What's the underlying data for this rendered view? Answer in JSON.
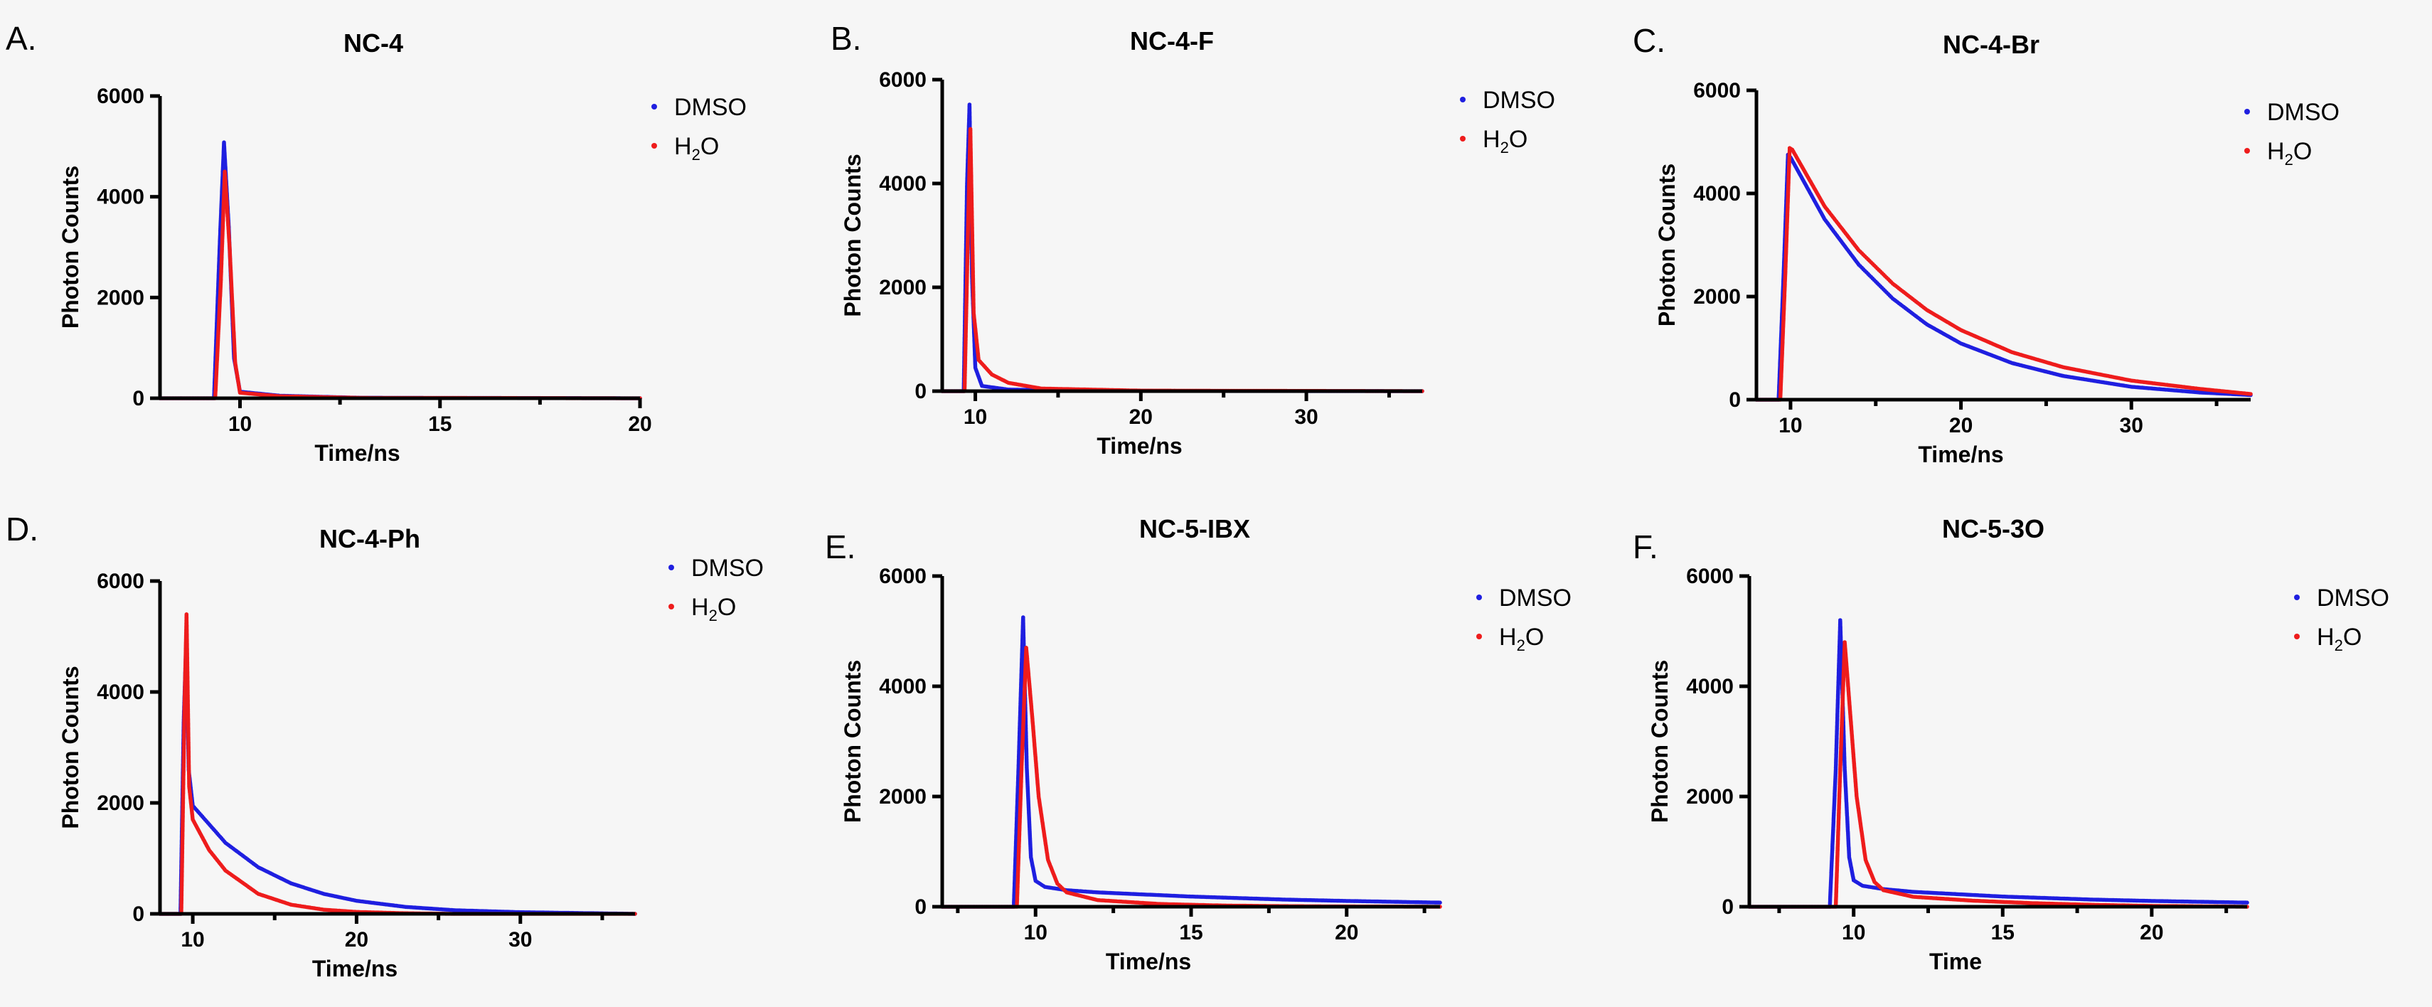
{
  "figure": {
    "colors": {
      "DMSO": "#1f1fe0",
      "H2O": "#ee1c1c"
    },
    "legend": {
      "dmso": "DMSO",
      "h2o_main": "H",
      "h2o_sub": "2",
      "h2o_tail": "O"
    }
  },
  "chart_data": [
    {
      "panel": "A.",
      "title": "NC-4",
      "type": "scatter",
      "xlabel": "Time/ns",
      "ylabel": "Photon Counts",
      "xlim": [
        8,
        20
      ],
      "ylim": [
        0,
        6000
      ],
      "xticks": [
        10,
        15,
        20
      ],
      "yticks": [
        0,
        2000,
        4000,
        6000
      ],
      "series": [
        {
          "name": "DMSO",
          "color": "#1f1fe0",
          "x": [
            8,
            9.35,
            9.5,
            9.6,
            9.72,
            9.85,
            10,
            11,
            13,
            20
          ],
          "y": [
            0,
            0,
            3200,
            5080,
            3400,
            800,
            130,
            50,
            10,
            0
          ]
        },
        {
          "name": "H2O",
          "color": "#ee1c1c",
          "x": [
            8,
            9.38,
            9.52,
            9.62,
            9.74,
            9.88,
            10,
            11,
            13,
            20
          ],
          "y": [
            0,
            0,
            2300,
            4500,
            3000,
            700,
            110,
            40,
            8,
            0
          ]
        }
      ]
    },
    {
      "panel": "B.",
      "title": "NC-4-F",
      "type": "scatter",
      "xlabel": "Time/ns",
      "ylabel": "Photon Counts",
      "xlim": [
        8,
        37
      ],
      "ylim": [
        0,
        6000
      ],
      "xticks": [
        10,
        20,
        30
      ],
      "yticks": [
        0,
        2000,
        4000,
        6000
      ],
      "series": [
        {
          "name": "DMSO",
          "color": "#1f1fe0",
          "x": [
            8,
            9.3,
            9.5,
            9.65,
            9.8,
            10,
            10.4,
            12,
            20,
            37
          ],
          "y": [
            0,
            0,
            4000,
            5520,
            2200,
            450,
            100,
            30,
            5,
            0
          ]
        },
        {
          "name": "H2O",
          "color": "#ee1c1c",
          "x": [
            8,
            9.35,
            9.55,
            9.7,
            9.9,
            10.2,
            11,
            12,
            14,
            20,
            37
          ],
          "y": [
            0,
            0,
            3000,
            5050,
            1500,
            600,
            320,
            160,
            50,
            10,
            0
          ]
        }
      ]
    },
    {
      "panel": "C.",
      "title": "NC-4-Br",
      "type": "scatter",
      "xlabel": "Time/ns",
      "ylabel": "Photon Counts",
      "xlim": [
        8,
        37
      ],
      "ylim": [
        0,
        6000
      ],
      "xticks": [
        10,
        20,
        30
      ],
      "yticks": [
        0,
        2000,
        4000,
        6000
      ],
      "series": [
        {
          "name": "DMSO",
          "color": "#1f1fe0",
          "x": [
            8,
            9.3,
            9.6,
            9.85,
            10,
            12,
            14,
            16,
            18,
            20,
            23,
            26,
            30,
            34,
            37
          ],
          "y": [
            0,
            0,
            2500,
            4750,
            4700,
            3500,
            2620,
            1960,
            1460,
            1090,
            710,
            460,
            250,
            140,
            90
          ]
        },
        {
          "name": "H2O",
          "color": "#ee1c1c",
          "x": [
            8,
            9.4,
            9.7,
            9.95,
            10.1,
            12,
            14,
            16,
            18,
            20,
            23,
            26,
            30,
            34,
            37
          ],
          "y": [
            0,
            0,
            2500,
            4880,
            4850,
            3750,
            2900,
            2250,
            1740,
            1350,
            920,
            630,
            370,
            210,
            110
          ]
        }
      ]
    },
    {
      "panel": "D.",
      "title": "NC-4-Ph",
      "type": "scatter",
      "xlabel": "Time/ns",
      "ylabel": "Photon Counts",
      "xlim": [
        8,
        37
      ],
      "ylim": [
        0,
        6000
      ],
      "xticks": [
        10,
        20,
        30
      ],
      "yticks": [
        0,
        2000,
        4000,
        6000
      ],
      "series": [
        {
          "name": "DMSO",
          "color": "#1f1fe0",
          "x": [
            8,
            9.25,
            9.45,
            9.6,
            9.75,
            10,
            12,
            14,
            16,
            18,
            20,
            23,
            26,
            30,
            37
          ],
          "y": [
            0,
            0,
            3500,
            4920,
            2600,
            1950,
            1280,
            840,
            550,
            360,
            235,
            125,
            65,
            30,
            0
          ]
        },
        {
          "name": "H2O",
          "color": "#ee1c1c",
          "x": [
            8,
            9.3,
            9.5,
            9.62,
            9.78,
            10,
            11,
            12,
            14,
            16,
            18,
            20,
            23,
            26,
            37
          ],
          "y": [
            0,
            0,
            3800,
            5400,
            2300,
            1700,
            1150,
            780,
            360,
            165,
            75,
            35,
            10,
            0,
            0
          ]
        }
      ]
    },
    {
      "panel": "E.",
      "title": "NC-5-IBX",
      "type": "scatter",
      "xlabel": "Time/ns",
      "ylabel": "Photon Counts",
      "xlim": [
        7,
        23
      ],
      "ylim": [
        0,
        6000
      ],
      "xticks": [
        10,
        15,
        20
      ],
      "yticks": [
        0,
        2000,
        4000,
        6000
      ],
      "series": [
        {
          "name": "DMSO",
          "color": "#1f1fe0",
          "x": [
            7,
            9.3,
            9.45,
            9.6,
            9.72,
            9.85,
            10,
            10.3,
            11,
            12,
            15,
            18,
            20,
            23
          ],
          "y": [
            0,
            0,
            2500,
            5250,
            2500,
            900,
            470,
            360,
            300,
            260,
            185,
            130,
            105,
            75
          ]
        },
        {
          "name": "H2O",
          "color": "#ee1c1c",
          "x": [
            7,
            9.4,
            9.55,
            9.7,
            9.9,
            10.1,
            10.4,
            10.7,
            11,
            12,
            14,
            16,
            18,
            20,
            23
          ],
          "y": [
            0,
            0,
            2500,
            4700,
            3400,
            2000,
            850,
            420,
            260,
            120,
            50,
            22,
            10,
            5,
            0
          ]
        }
      ]
    },
    {
      "panel": "F.",
      "title": "NC-5-3O",
      "type": "scatter",
      "xlabel": "Time",
      "ylabel": "Photon Counts",
      "xlim": [
        6.5,
        23.2
      ],
      "ylim": [
        0,
        6000
      ],
      "xticks": [
        10,
        15,
        20
      ],
      "yticks": [
        0,
        2000,
        4000,
        6000
      ],
      "series": [
        {
          "name": "DMSO",
          "color": "#1f1fe0",
          "x": [
            6.5,
            9.2,
            9.4,
            9.55,
            9.7,
            9.85,
            10,
            10.3,
            11,
            12,
            15,
            18,
            20,
            23.2
          ],
          "y": [
            0,
            0,
            2500,
            5200,
            2500,
            900,
            480,
            380,
            320,
            270,
            185,
            130,
            105,
            75
          ]
        },
        {
          "name": "H2O",
          "color": "#ee1c1c",
          "x": [
            6.5,
            9.4,
            9.55,
            9.7,
            9.9,
            10.1,
            10.4,
            10.7,
            11,
            12,
            14,
            16,
            18,
            20,
            23.2
          ],
          "y": [
            0,
            0,
            2500,
            4800,
            3400,
            2000,
            850,
            450,
            300,
            180,
            110,
            65,
            35,
            15,
            0
          ]
        }
      ]
    }
  ]
}
